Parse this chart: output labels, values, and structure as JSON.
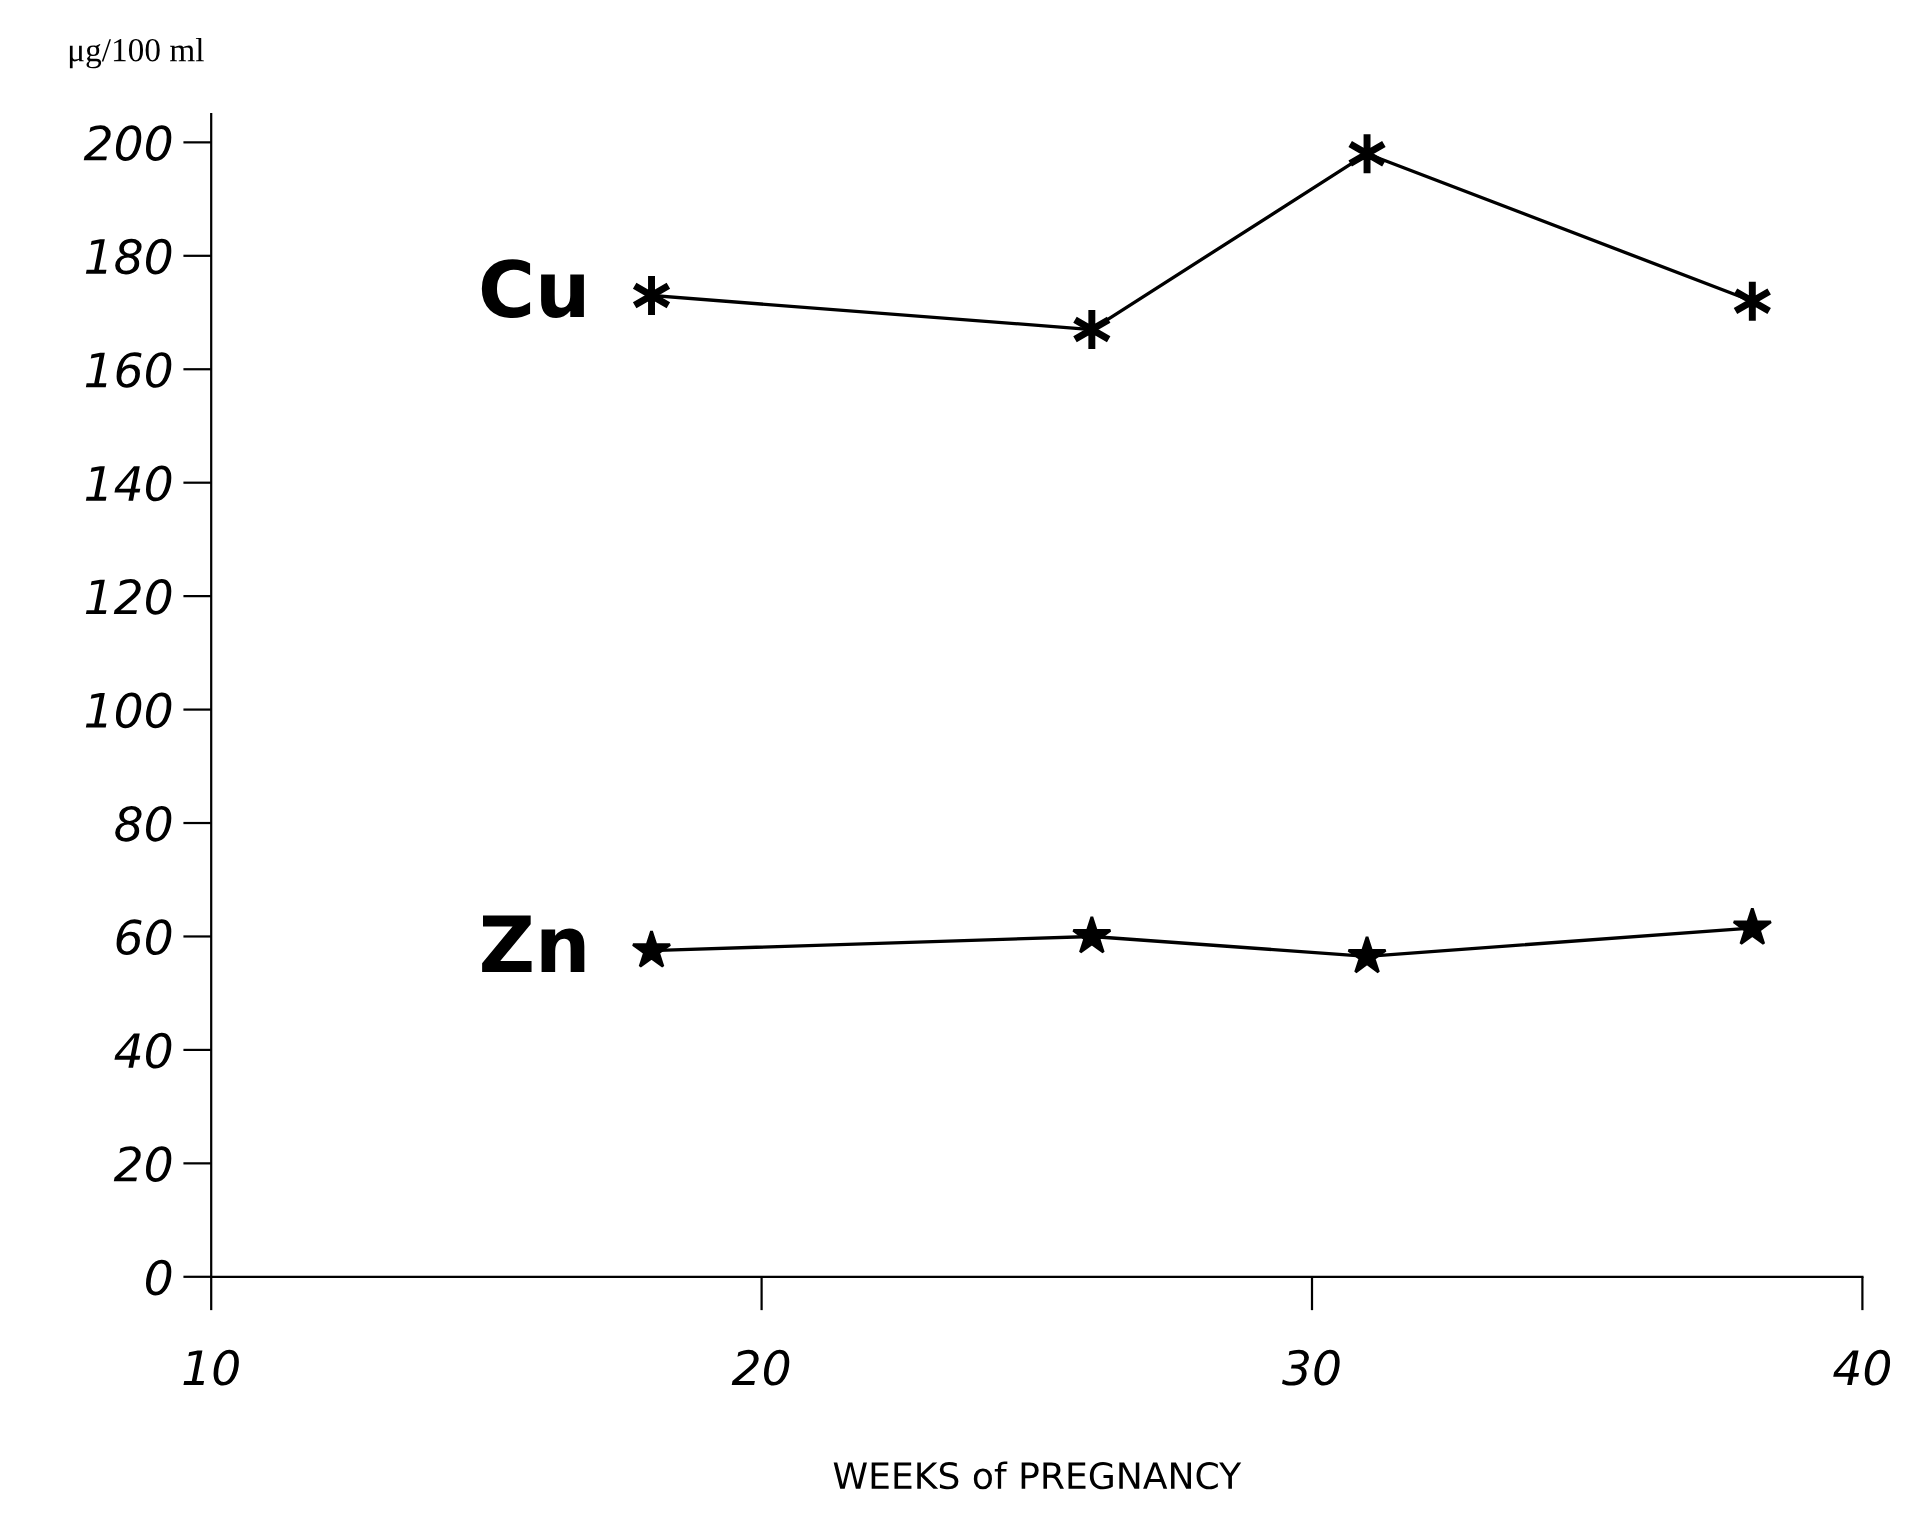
{
  "chart_data": {
    "type": "line",
    "ylabel": "μg/100 ml",
    "xlabel": "WEEKS of PREGNANCY",
    "xlim": [
      10,
      40
    ],
    "xticks": [
      10,
      20,
      30,
      40
    ],
    "ylim": [
      0,
      205
    ],
    "yticks": [
      0,
      20,
      40,
      60,
      80,
      100,
      120,
      140,
      160,
      180,
      200
    ],
    "grid": false,
    "legend": false,
    "line_style": "solid",
    "series": [
      {
        "name": "Cu",
        "color": "#000000",
        "marker": "cross",
        "x": [
          18,
          26,
          31,
          38
        ],
        "values": [
          173,
          167,
          198,
          172
        ]
      },
      {
        "name": "Zn",
        "color": "#000000",
        "marker": "star",
        "x": [
          18,
          26,
          31,
          38
        ],
        "values": [
          57.5,
          60,
          56.5,
          61.5
        ]
      }
    ]
  }
}
